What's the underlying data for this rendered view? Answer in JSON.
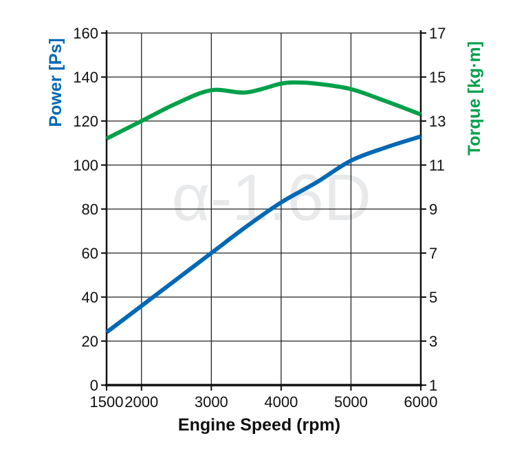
{
  "chart_data": {
    "type": "line",
    "title": "",
    "watermark": "α-1.6D",
    "xlabel": "Engine Speed (rpm)",
    "xlim": [
      1500,
      6000
    ],
    "xticks": [
      1500,
      2000,
      3000,
      4000,
      5000,
      6000
    ],
    "ylabel_left": "Power [Ps]",
    "ylim_left": [
      0,
      160
    ],
    "yticks_left": [
      0,
      20,
      40,
      60,
      80,
      100,
      120,
      140,
      160
    ],
    "ylabel_right": "Torque [kg·m]",
    "ylim_right": [
      1,
      17
    ],
    "yticks_right": [
      1,
      3,
      5,
      7,
      9,
      11,
      13,
      15,
      17
    ],
    "grid": true,
    "series": [
      {
        "name": "Power [Ps]",
        "axis": "left",
        "color": "#0068b4",
        "x": [
          1500,
          2000,
          2500,
          3000,
          3500,
          4000,
          4500,
          5000,
          5500,
          6000
        ],
        "y": [
          24,
          36,
          48,
          60,
          72,
          83,
          92,
          102,
          108,
          113
        ]
      },
      {
        "name": "Torque [kg·m]",
        "axis": "right",
        "color": "#00a04b",
        "x": [
          1500,
          2000,
          2500,
          3000,
          3500,
          4000,
          4250,
          4500,
          5000,
          5500,
          6000
        ],
        "y": [
          12.2,
          13.0,
          13.8,
          14.4,
          14.3,
          14.7,
          14.75,
          14.7,
          14.45,
          13.9,
          13.3
        ]
      }
    ]
  }
}
